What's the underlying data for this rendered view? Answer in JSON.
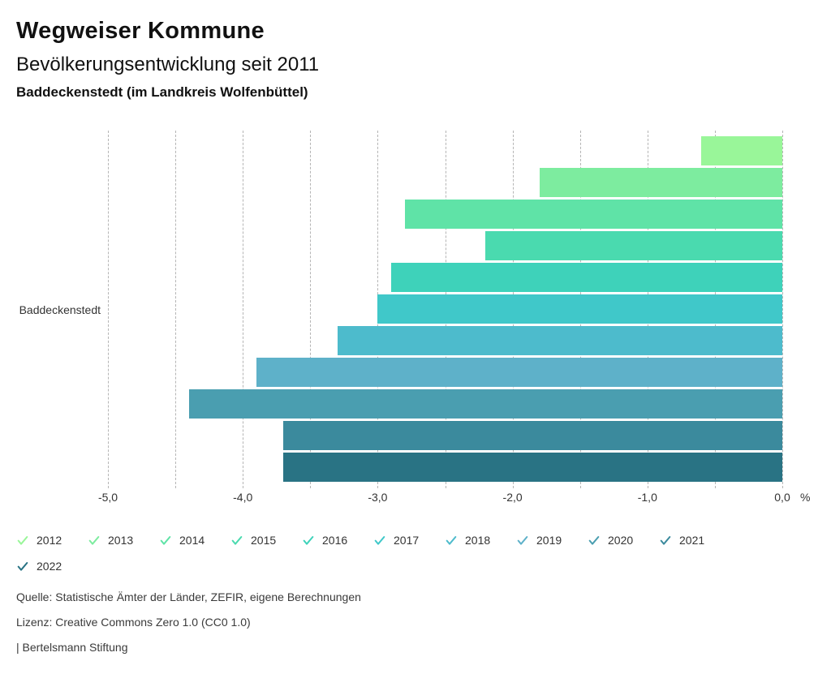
{
  "header": {
    "title": "Wegweiser Kommune",
    "subtitle": "Bevölkerungsentwicklung seit 2011",
    "region_line": "Baddeckenstedt (im Landkreis Wolfenbüttel)"
  },
  "chart_data": {
    "type": "bar",
    "orientation": "horizontal",
    "category_label": "Baddeckenstedt",
    "unit": "%",
    "xlim": [
      -5.0,
      0.0
    ],
    "gridline_step": 0.5,
    "grid": "dashed-vertical",
    "legend_position": "bottom",
    "series": [
      {
        "year": "2012",
        "value": -0.6,
        "color": "#99f699"
      },
      {
        "year": "2013",
        "value": -1.8,
        "color": "#7dec9f"
      },
      {
        "year": "2014",
        "value": -2.8,
        "color": "#5fe3a7"
      },
      {
        "year": "2015",
        "value": -2.2,
        "color": "#4adaaf"
      },
      {
        "year": "2016",
        "value": -2.9,
        "color": "#3ed2ba"
      },
      {
        "year": "2017",
        "value": -3.0,
        "color": "#40c8c9"
      },
      {
        "year": "2018",
        "value": -3.3,
        "color": "#4dbbcc"
      },
      {
        "year": "2019",
        "value": -3.9,
        "color": "#5eb1c9"
      },
      {
        "year": "2020",
        "value": -4.4,
        "color": "#4a9eb0"
      },
      {
        "year": "2021",
        "value": -3.7,
        "color": "#3b8a9d"
      },
      {
        "year": "2022",
        "value": -3.7,
        "color": "#297384"
      }
    ],
    "x_ticks": [
      {
        "value": -5.0,
        "label": "-5,0"
      },
      {
        "value": -4.0,
        "label": "-4,0"
      },
      {
        "value": -3.0,
        "label": "-3,0"
      },
      {
        "value": -2.0,
        "label": "-2,0"
      },
      {
        "value": -1.0,
        "label": "-1,0"
      },
      {
        "value": 0.0,
        "label": "0,0"
      }
    ]
  },
  "footer": {
    "source": "Quelle: Statistische Ämter der Länder, ZEFIR, eigene Berechnungen",
    "license": "Lizenz: Creative Commons Zero 1.0 (CC0 1.0)",
    "attribution": "| Bertelsmann Stiftung"
  }
}
